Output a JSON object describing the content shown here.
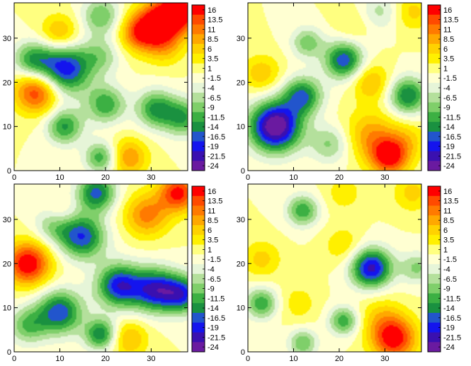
{
  "levels": [
    "16",
    "13.5",
    "11",
    "8.5",
    "6",
    "3.5",
    "1",
    "-1.5",
    "-4",
    "-6.5",
    "-9",
    "-11.5",
    "-14",
    "-16.5",
    "-19",
    "-21.5",
    "-24"
  ],
  "level_values": [
    16,
    13.5,
    11,
    8.5,
    6,
    3.5,
    1,
    -1.5,
    -4,
    -6.5,
    -9,
    -11.5,
    -14,
    -16.5,
    -19,
    -21.5,
    -24
  ],
  "level_colors": [
    "#ff0000",
    "#ff4a00",
    "#ff7a00",
    "#ffa800",
    "#ffd200",
    "#fff000",
    "#ffff80",
    "#ffffd2",
    "#e6f5d8",
    "#b4e09c",
    "#7fcf6a",
    "#3cb043",
    "#1a9140",
    "#2255cc",
    "#1414ee",
    "#3a10b0",
    "#6a1aa0"
  ],
  "chart_data": [
    {
      "type": "contour",
      "xlim": [
        0,
        38
      ],
      "ylim": [
        0,
        38
      ],
      "xticks": [
        0,
        10,
        20,
        30
      ],
      "yticks": [
        0,
        10,
        20,
        30
      ],
      "xtick_labels": [
        "0",
        "10",
        "20",
        "30"
      ],
      "ytick_labels": [
        "0",
        "10",
        "20",
        "30"
      ],
      "features": [
        {
          "x": 36,
          "y": 36,
          "amp": 18,
          "sigma": 3.5
        },
        {
          "x": 31,
          "y": 33,
          "amp": 15,
          "sigma": 3.5
        },
        {
          "x": 27,
          "y": 31,
          "amp": 10,
          "sigma": 3
        },
        {
          "x": 33,
          "y": 28,
          "amp": 6,
          "sigma": 3
        },
        {
          "x": 10,
          "y": 31,
          "amp": 9,
          "sigma": 3
        },
        {
          "x": 5,
          "y": 18,
          "amp": 16,
          "sigma": 3.5
        },
        {
          "x": 25,
          "y": 3,
          "amp": 10,
          "sigma": 3
        },
        {
          "x": 11,
          "y": 23,
          "amp": -20,
          "sigma": 4
        },
        {
          "x": 4,
          "y": 25,
          "amp": -12,
          "sigma": 3
        },
        {
          "x": 19,
          "y": 35,
          "amp": -10,
          "sigma": 3
        },
        {
          "x": 19,
          "y": 26,
          "amp": -7,
          "sigma": 3
        },
        {
          "x": 20,
          "y": 15,
          "amp": -12,
          "sigma": 3
        },
        {
          "x": 31,
          "y": 14,
          "amp": -13,
          "sigma": 3
        },
        {
          "x": 37,
          "y": 12,
          "amp": -12,
          "sigma": 3
        },
        {
          "x": 11,
          "y": 10,
          "amp": -13,
          "sigma": 2.8
        },
        {
          "x": 19,
          "y": 3,
          "amp": -12,
          "sigma": 2.5
        }
      ],
      "colorbar_ticks": [
        "16",
        "13.5",
        "11",
        "8.5",
        "6",
        "3.5",
        "1",
        "-1.5",
        "-4",
        "-6.5",
        "-9",
        "-11.5",
        "-14",
        "-16.5",
        "-19",
        "-21.5",
        "-24"
      ]
    },
    {
      "type": "contour",
      "xlim": [
        0,
        38
      ],
      "ylim": [
        0,
        38
      ],
      "xticks": [
        0,
        10,
        20,
        30
      ],
      "yticks": [
        0,
        10,
        20,
        30
      ],
      "xtick_labels": [
        "0",
        "10",
        "20",
        "30"
      ],
      "ytick_labels": [
        "0",
        "10",
        "20",
        "30"
      ],
      "features": [
        {
          "x": 31,
          "y": 3,
          "amp": 16,
          "sigma": 3
        },
        {
          "x": 27,
          "y": 8,
          "amp": 9,
          "sigma": 4
        },
        {
          "x": 35,
          "y": 7,
          "amp": 5,
          "sigma": 3
        },
        {
          "x": 36,
          "y": 36,
          "amp": 6,
          "sigma": 3
        },
        {
          "x": 3,
          "y": 22,
          "amp": 7,
          "sigma": 3
        },
        {
          "x": 27,
          "y": 20,
          "amp": 8,
          "sigma": 3
        },
        {
          "x": 23,
          "y": 33,
          "amp": 3,
          "sigma": 3
        },
        {
          "x": 6,
          "y": 10,
          "amp": -26,
          "sigma": 4
        },
        {
          "x": 12,
          "y": 17,
          "amp": -15,
          "sigma": 3
        },
        {
          "x": 21,
          "y": 25,
          "amp": -17,
          "sigma": 3
        },
        {
          "x": 13,
          "y": 29,
          "amp": -9,
          "sigma": 2.5
        },
        {
          "x": 35,
          "y": 17,
          "amp": -15,
          "sigma": 3
        },
        {
          "x": 18,
          "y": 6,
          "amp": -8,
          "sigma": 3
        },
        {
          "x": 29,
          "y": 36,
          "amp": -6,
          "sigma": 3
        }
      ],
      "colorbar_ticks": [
        "16",
        "13.5",
        "11",
        "8.5",
        "6",
        "3.5",
        "1",
        "-1.5",
        "-4",
        "-6.5",
        "-9",
        "-11.5",
        "-14",
        "-16.5",
        "-19",
        "-21.5",
        "-24"
      ]
    },
    {
      "type": "contour",
      "xlim": [
        0,
        38
      ],
      "ylim": [
        0,
        38
      ],
      "xticks": [
        0,
        10,
        20,
        30
      ],
      "yticks": [
        0,
        10,
        20,
        30
      ],
      "xtick_labels": [
        "0",
        "10",
        "20",
        "30"
      ],
      "ytick_labels": [
        "0",
        "10",
        "20",
        "30"
      ],
      "features": [
        {
          "x": 3,
          "y": 20,
          "amp": 18,
          "sigma": 3.5
        },
        {
          "x": 36,
          "y": 36,
          "amp": 16,
          "sigma": 3
        },
        {
          "x": 29,
          "y": 31,
          "amp": 11,
          "sigma": 3.5
        },
        {
          "x": 10,
          "y": 31,
          "amp": 6,
          "sigma": 2.5
        },
        {
          "x": 25,
          "y": 3,
          "amp": 8,
          "sigma": 3
        },
        {
          "x": 15,
          "y": 26,
          "amp": -17,
          "sigma": 3.5
        },
        {
          "x": 9,
          "y": 29,
          "amp": -10,
          "sigma": 3
        },
        {
          "x": 18,
          "y": 36,
          "amp": -16,
          "sigma": 3
        },
        {
          "x": 23,
          "y": 15,
          "amp": -19,
          "sigma": 3.5
        },
        {
          "x": 31,
          "y": 14,
          "amp": -19,
          "sigma": 3.5
        },
        {
          "x": 37,
          "y": 13,
          "amp": -16,
          "sigma": 3
        },
        {
          "x": 10,
          "y": 9,
          "amp": -17,
          "sigma": 3.5
        },
        {
          "x": 19,
          "y": 4,
          "amp": -15,
          "sigma": 2.5
        },
        {
          "x": 3,
          "y": 6,
          "amp": -10,
          "sigma": 3
        }
      ],
      "colorbar_ticks": [
        "16",
        "13.5",
        "11",
        "8.5",
        "6",
        "3.5",
        "1",
        "-1.5",
        "-4",
        "-6.5",
        "-9",
        "-11.5",
        "-14",
        "-16.5",
        "-19",
        "-21.5",
        "-24"
      ]
    },
    {
      "type": "contour",
      "xlim": [
        0,
        38
      ],
      "ylim": [
        0,
        38
      ],
      "xticks": [
        0,
        10,
        20,
        30
      ],
      "yticks": [
        0,
        10,
        20,
        30
      ],
      "xtick_labels": [
        "0",
        "10",
        "20",
        "30"
      ],
      "ytick_labels": [
        "0",
        "10",
        "20",
        "30"
      ],
      "features": [
        {
          "x": 32,
          "y": 3,
          "amp": 17,
          "sigma": 3.5
        },
        {
          "x": 29,
          "y": 8,
          "amp": 5,
          "sigma": 3.5
        },
        {
          "x": 3,
          "y": 21,
          "amp": 6,
          "sigma": 3
        },
        {
          "x": 36,
          "y": 36,
          "amp": 6,
          "sigma": 3
        },
        {
          "x": 21,
          "y": 24,
          "amp": 5,
          "sigma": 3
        },
        {
          "x": 21,
          "y": 36,
          "amp": 4,
          "sigma": 3
        },
        {
          "x": 11,
          "y": 11,
          "amp": 4,
          "sigma": 3
        },
        {
          "x": 27,
          "y": 19,
          "amp": -21,
          "sigma": 3.2
        },
        {
          "x": 37,
          "y": 19,
          "amp": -8,
          "sigma": 2.5
        },
        {
          "x": 3,
          "y": 11,
          "amp": -12,
          "sigma": 2.5
        },
        {
          "x": 12,
          "y": 32,
          "amp": -12,
          "sigma": 2.5
        },
        {
          "x": 21,
          "y": 7,
          "amp": -12,
          "sigma": 2.3
        },
        {
          "x": 12,
          "y": 2,
          "amp": -10,
          "sigma": 2.2
        }
      ],
      "colorbar_ticks": [
        "16",
        "13.5",
        "11",
        "8.5",
        "6",
        "3.5",
        "1",
        "-1.5",
        "-4",
        "-6.5",
        "-9",
        "-11.5",
        "-14",
        "-16.5",
        "-19",
        "-21.5",
        "-24"
      ]
    }
  ]
}
